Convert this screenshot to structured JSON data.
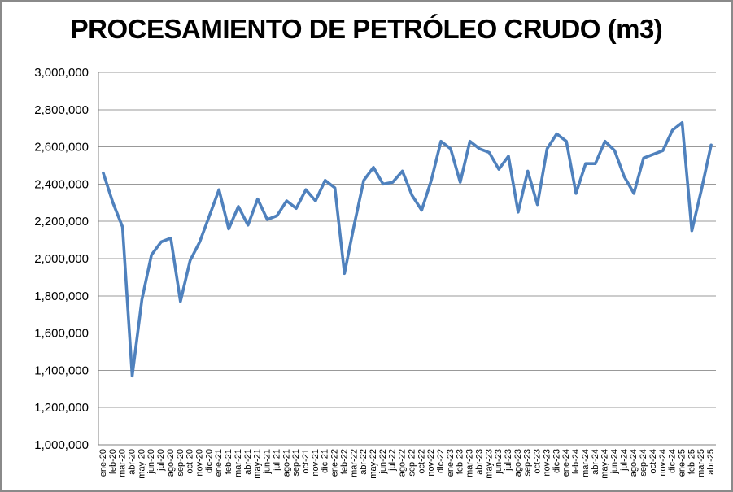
{
  "chart_data": {
    "type": "line",
    "title": "PROCESAMIENTO DE PETRÓLEO CRUDO (m3)",
    "x": [
      "ene-20",
      "feb-20",
      "mar-20",
      "abr-20",
      "may-20",
      "jun-20",
      "jul-20",
      "ago-20",
      "sep-20",
      "oct-20",
      "nov-20",
      "dic-20",
      "ene-21",
      "feb-21",
      "mar-21",
      "abr-21",
      "may-21",
      "jun-21",
      "jul-21",
      "ago-21",
      "sep-21",
      "oct-21",
      "nov-21",
      "dic-21",
      "ene-22",
      "feb-22",
      "mar-22",
      "abr-22",
      "may-22",
      "jun-22",
      "jul-22",
      "ago-22",
      "sep-22",
      "oct-22",
      "nov-22",
      "dic-22",
      "ene-23",
      "feb-23",
      "mar-23",
      "abr-23",
      "may-23",
      "jun-23",
      "jul-23",
      "ago-23",
      "sep-23",
      "oct-23",
      "nov-23",
      "dic-23",
      "ene-24",
      "feb-24",
      "mar-24",
      "abr-24",
      "may-24",
      "jun-24",
      "jul-24",
      "ago-24",
      "sep-24",
      "oct-24",
      "nov-24",
      "dic-24",
      "ene-25",
      "feb-25",
      "mar-25",
      "abr-25"
    ],
    "values": [
      2460000,
      2300000,
      2170000,
      1370000,
      1780000,
      2020000,
      2090000,
      2110000,
      1770000,
      1990000,
      2090000,
      2230000,
      2370000,
      2160000,
      2280000,
      2180000,
      2320000,
      2210000,
      2230000,
      2310000,
      2270000,
      2370000,
      2310000,
      2420000,
      2380000,
      1920000,
      2180000,
      2420000,
      2490000,
      2400000,
      2410000,
      2470000,
      2340000,
      2260000,
      2420000,
      2630000,
      2590000,
      2410000,
      2630000,
      2590000,
      2570000,
      2480000,
      2550000,
      2250000,
      2470000,
      2290000,
      2590000,
      2670000,
      2630000,
      2350000,
      2510000,
      2510000,
      2630000,
      2580000,
      2440000,
      2350000,
      2540000,
      2560000,
      2580000,
      2690000,
      2730000,
      2150000,
      2370000,
      2610000
    ],
    "xlabel": "",
    "ylabel": "",
    "ylim": [
      1000000,
      3000000
    ],
    "y_tick_interval": 200000,
    "y_tick_labels": [
      "3,000,000",
      "2,800,000",
      "2,600,000",
      "2,400,000",
      "2,200,000",
      "2,000,000",
      "1,800,000",
      "1,600,000",
      "1,400,000",
      "1,200,000",
      "1,000,000"
    ],
    "grid": true,
    "legend": false,
    "line_color": "#4F81BD",
    "gridline_color": "#999999",
    "axis_line_color": "#808080",
    "tick_text_color": "#000000",
    "title_color": "#000000"
  }
}
